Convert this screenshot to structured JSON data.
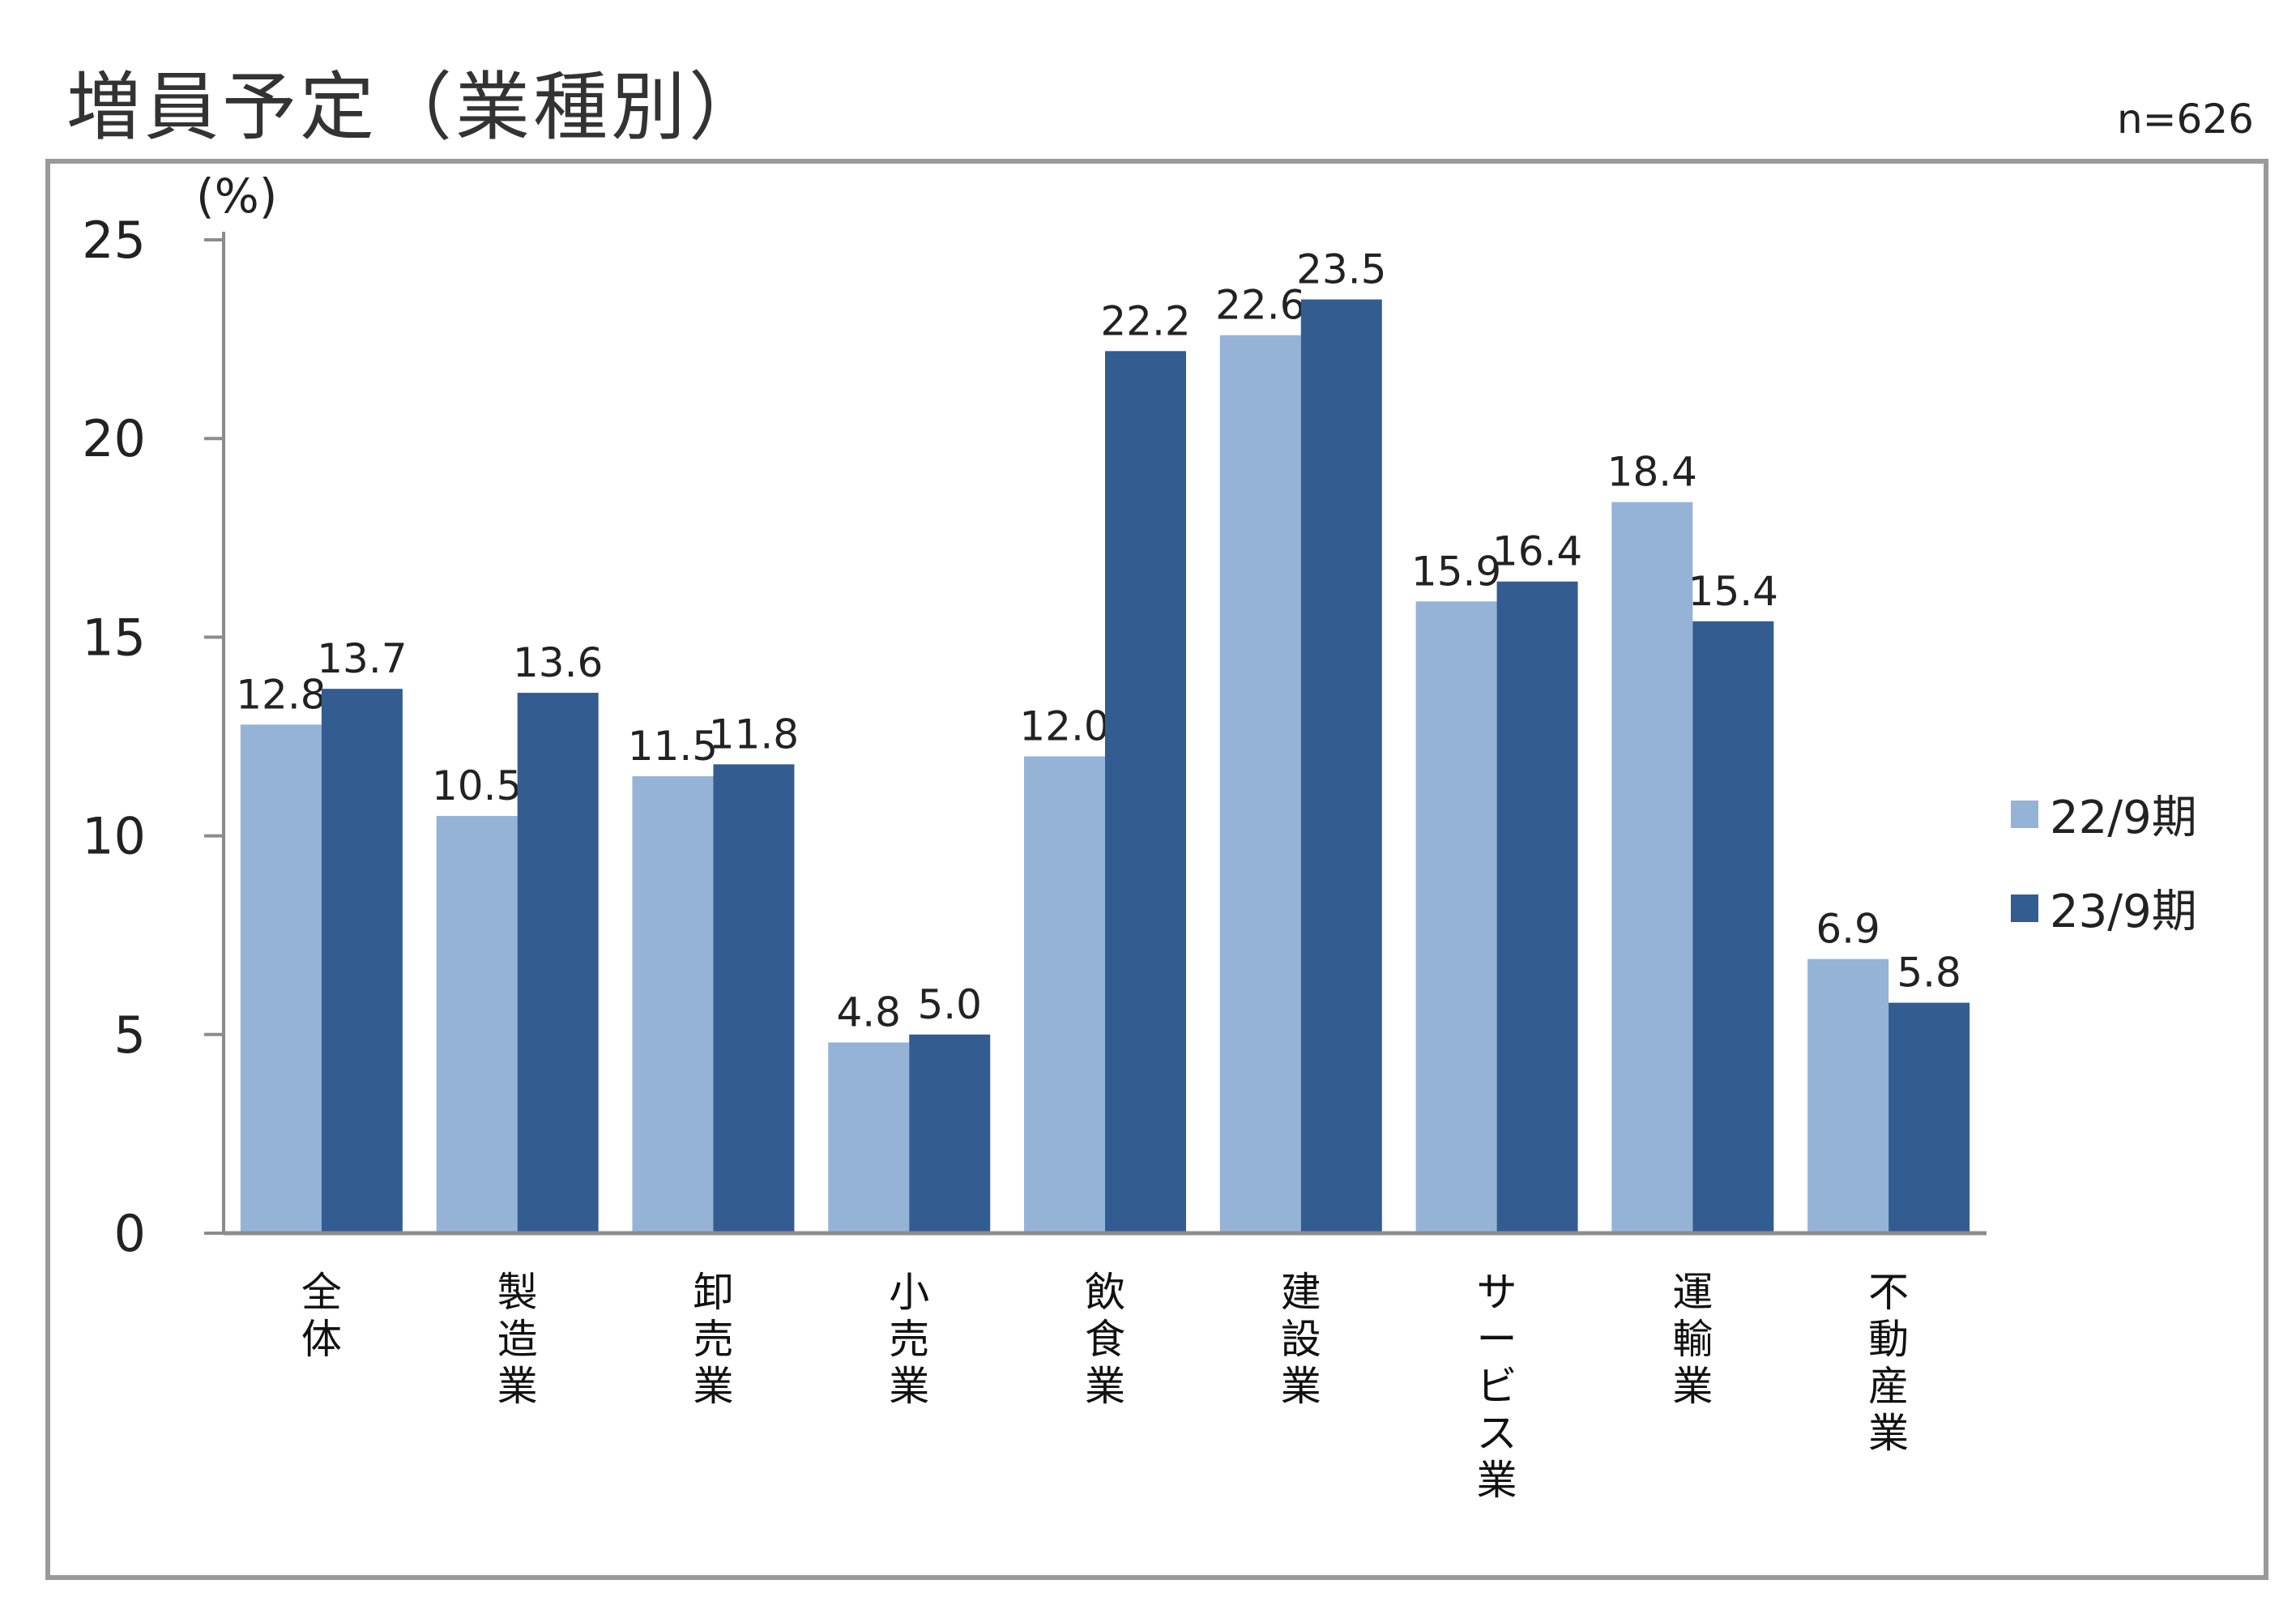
{
  "title": "増員予定（業種別）",
  "sample_note": "n=626",
  "colors": {
    "series1": "#95B3D7",
    "series2": "#335C91",
    "axis": "#8c8c8c",
    "frame": "#9a9a9a"
  },
  "chart_data": {
    "type": "bar",
    "title": "増員予定（業種別）",
    "ylabel": "(%)",
    "xlabel": "",
    "ylim": [
      0,
      25
    ],
    "yticks": [
      0,
      5,
      10,
      15,
      20,
      25
    ],
    "grid": false,
    "legend_position": "right",
    "categories": [
      "全体",
      "製造業",
      "卸売業",
      "小売業",
      "飲食業",
      "建設業",
      "サービス業",
      "運輸業",
      "不動産業"
    ],
    "series": [
      {
        "name": "22/9期",
        "color": "#95B3D7",
        "values": [
          12.8,
          10.5,
          11.5,
          4.8,
          12.0,
          22.6,
          15.9,
          18.4,
          6.9
        ]
      },
      {
        "name": "23/9期",
        "color": "#335C91",
        "values": [
          13.7,
          13.6,
          11.8,
          5.0,
          22.2,
          23.5,
          16.4,
          15.4,
          5.8
        ]
      }
    ]
  }
}
